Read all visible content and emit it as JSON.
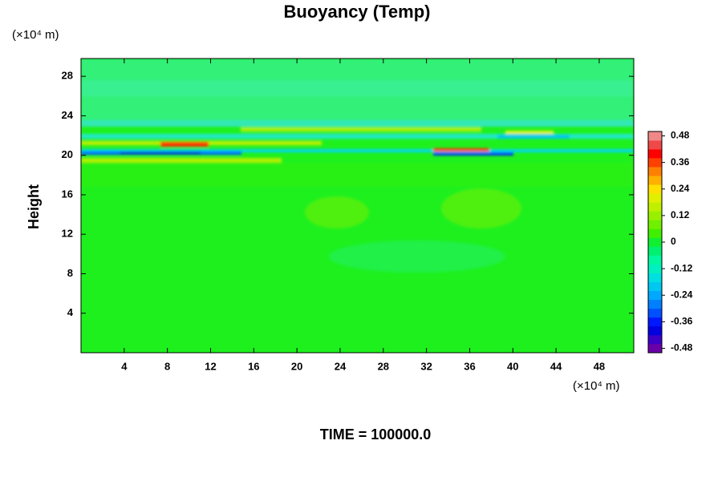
{
  "chart_data": {
    "type": "heatmap",
    "title": "Buoyancy (Temp)",
    "ylabel": "Height",
    "y_unit": "(×10⁴ m)",
    "x_unit": "(×10⁴ m)",
    "annotation": "TIME = 100000.0",
    "xlim": [
      0,
      51.2
    ],
    "xticks": [
      4,
      8,
      12,
      16,
      20,
      24,
      28,
      32,
      36,
      40,
      44,
      48
    ],
    "ylim": [
      0,
      29.8
    ],
    "yticks": [
      4,
      8,
      12,
      16,
      20,
      24,
      28
    ],
    "colorbar": {
      "range": [
        -0.5,
        0.5
      ],
      "ticks": [
        0.48,
        0.36,
        0.24,
        0.12,
        0,
        -0.12,
        -0.24,
        -0.36,
        -0.48
      ],
      "colors": [
        "#6a00a8",
        "#3c00c8",
        "#0000e0",
        "#0018ff",
        "#0050ff",
        "#0080ff",
        "#00a8ff",
        "#00c8f0",
        "#00e0e0",
        "#00f0c0",
        "#00f8a0",
        "#00f070",
        "#10f030",
        "#40f000",
        "#70f000",
        "#98f000",
        "#c0f000",
        "#e0f000",
        "#ffe000",
        "#ffb000",
        "#ff8000",
        "#ff4000",
        "#ff0000",
        "#f04848",
        "#f08888"
      ]
    }
  }
}
